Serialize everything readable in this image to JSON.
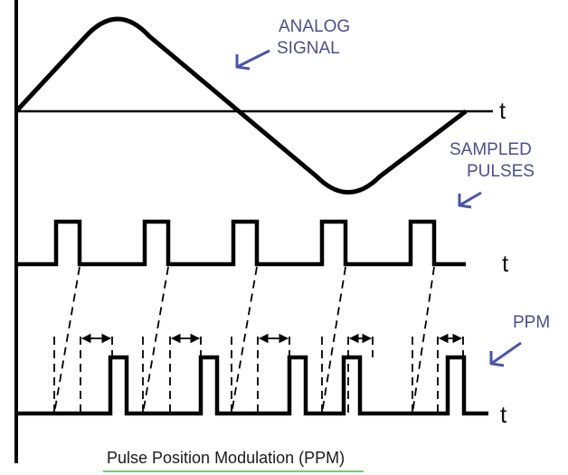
{
  "labels": {
    "analog_line1": "ANALOG",
    "analog_line2": "SIGNAL",
    "sampled_line1": "SAMPLED",
    "sampled_line2": "PULSES",
    "ppm": "PPM",
    "time_axis_1": "t",
    "time_axis_2": "t",
    "time_axis_3": "t",
    "caption": "Pulse Position Modulation (PPM)"
  },
  "colors": {
    "ink": "#000000",
    "label": "#4a4f8f",
    "arrow": "#4a55a8",
    "caption_underline": "#6fcf6f"
  },
  "icons": [
    "arrow-to-analog-icon",
    "arrow-to-sampled-icon",
    "arrow-to-ppm-icon",
    "delay-double-arrow-icon"
  ]
}
